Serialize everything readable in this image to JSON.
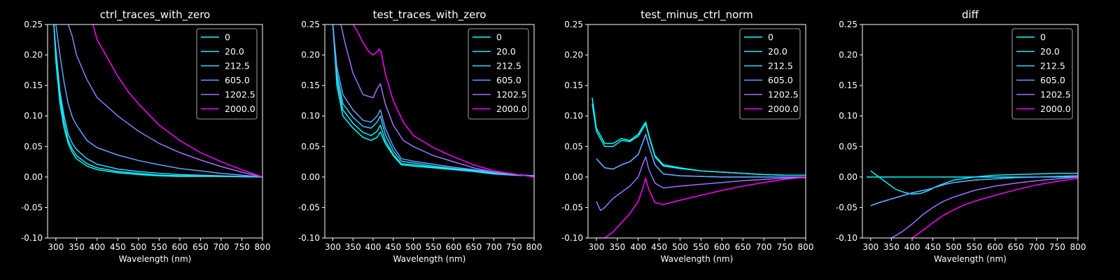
{
  "chart_data": [
    {
      "type": "line",
      "title": "ctrl_traces_with_zero",
      "xlabel": "Wavelength (nm)",
      "ylabel": "",
      "xlim": [
        280,
        800
      ],
      "ylim": [
        -0.1,
        0.25
      ],
      "xticks": [
        300,
        350,
        400,
        450,
        500,
        550,
        600,
        650,
        700,
        750,
        800
      ],
      "yticks": [
        -0.1,
        -0.05,
        0.0,
        0.05,
        0.1,
        0.15,
        0.2,
        0.25
      ],
      "legend_position": "top-right",
      "series": [
        {
          "name": "0",
          "color": "#00ffff",
          "x": [
            295,
            300,
            310,
            320,
            330,
            340,
            350,
            375,
            400,
            450,
            500,
            550,
            600,
            700,
            800
          ],
          "y": [
            0.25,
            0.19,
            0.12,
            0.08,
            0.055,
            0.04,
            0.03,
            0.018,
            0.012,
            0.007,
            0.004,
            0.002,
            0.001,
            0.001,
            0.0
          ]
        },
        {
          "name": "20.0",
          "color": "#10efff",
          "x": [
            295,
            300,
            310,
            320,
            330,
            340,
            350,
            375,
            400,
            450,
            500,
            550,
            600,
            700,
            800
          ],
          "y": [
            0.25,
            0.2,
            0.13,
            0.09,
            0.06,
            0.045,
            0.035,
            0.022,
            0.015,
            0.009,
            0.006,
            0.003,
            0.002,
            0.001,
            0.0
          ]
        },
        {
          "name": "212.5",
          "color": "#33cfff",
          "x": [
            295,
            300,
            310,
            320,
            330,
            340,
            350,
            375,
            400,
            450,
            500,
            550,
            600,
            700,
            800
          ],
          "y": [
            0.25,
            0.21,
            0.14,
            0.1,
            0.07,
            0.055,
            0.045,
            0.03,
            0.021,
            0.013,
            0.009,
            0.006,
            0.004,
            0.002,
            0.0
          ]
        },
        {
          "name": "605.0",
          "color": "#66a0ff",
          "x": [
            300,
            310,
            320,
            330,
            340,
            350,
            375,
            400,
            450,
            500,
            550,
            600,
            650,
            700,
            750,
            800
          ],
          "y": [
            0.25,
            0.2,
            0.155,
            0.12,
            0.098,
            0.085,
            0.06,
            0.048,
            0.036,
            0.027,
            0.02,
            0.014,
            0.01,
            0.006,
            0.003,
            0.0
          ]
        },
        {
          "name": "1202.5",
          "color": "#a070ff",
          "x": [
            330,
            340,
            350,
            375,
            400,
            425,
            450,
            500,
            550,
            600,
            650,
            700,
            750,
            800
          ],
          "y": [
            0.25,
            0.23,
            0.2,
            0.16,
            0.13,
            0.115,
            0.1,
            0.075,
            0.055,
            0.04,
            0.028,
            0.017,
            0.008,
            0.0
          ]
        },
        {
          "name": "2000.0",
          "color": "#ff00ff",
          "x": [
            390,
            400,
            425,
            450,
            475,
            500,
            550,
            600,
            650,
            700,
            750,
            800
          ],
          "y": [
            0.25,
            0.225,
            0.195,
            0.165,
            0.14,
            0.12,
            0.085,
            0.06,
            0.04,
            0.025,
            0.012,
            0.0
          ]
        }
      ]
    },
    {
      "type": "line",
      "title": "test_traces_with_zero",
      "xlabel": "Wavelength (nm)",
      "ylabel": "",
      "xlim": [
        280,
        800
      ],
      "ylim": [
        -0.1,
        0.25
      ],
      "xticks": [
        300,
        350,
        400,
        450,
        500,
        550,
        600,
        650,
        700,
        750,
        800
      ],
      "yticks": [
        -0.1,
        -0.05,
        0.0,
        0.05,
        0.1,
        0.15,
        0.2,
        0.25
      ],
      "legend_position": "top-right",
      "series": [
        {
          "name": "0",
          "color": "#00ffff",
          "x": [
            300,
            310,
            325,
            350,
            375,
            395,
            410,
            418,
            430,
            450,
            470,
            500,
            550,
            600,
            650,
            700,
            750,
            800
          ],
          "y": [
            0.25,
            0.15,
            0.1,
            0.08,
            0.065,
            0.06,
            0.065,
            0.074,
            0.055,
            0.035,
            0.02,
            0.018,
            0.015,
            0.012,
            0.009,
            0.005,
            0.003,
            0.002
          ]
        },
        {
          "name": "20.0",
          "color": "#10efff",
          "x": [
            300,
            310,
            325,
            350,
            375,
            395,
            410,
            418,
            430,
            450,
            470,
            500,
            550,
            600,
            650,
            700,
            750,
            800
          ],
          "y": [
            0.25,
            0.16,
            0.11,
            0.088,
            0.073,
            0.068,
            0.075,
            0.085,
            0.06,
            0.037,
            0.022,
            0.02,
            0.016,
            0.013,
            0.01,
            0.006,
            0.003,
            0.002
          ]
        },
        {
          "name": "212.5",
          "color": "#33cfff",
          "x": [
            300,
            310,
            325,
            350,
            375,
            395,
            410,
            418,
            430,
            450,
            470,
            500,
            550,
            600,
            650,
            700,
            750,
            800
          ],
          "y": [
            0.25,
            0.17,
            0.12,
            0.098,
            0.083,
            0.08,
            0.09,
            0.1,
            0.07,
            0.043,
            0.026,
            0.023,
            0.018,
            0.014,
            0.011,
            0.007,
            0.004,
            0.002
          ]
        },
        {
          "name": "605.0",
          "color": "#66a0ff",
          "x": [
            300,
            310,
            325,
            350,
            375,
            395,
            410,
            418,
            430,
            450,
            470,
            500,
            550,
            600,
            650,
            700,
            750,
            800
          ],
          "y": [
            0.25,
            0.18,
            0.135,
            0.11,
            0.093,
            0.09,
            0.1,
            0.11,
            0.08,
            0.05,
            0.03,
            0.026,
            0.021,
            0.016,
            0.012,
            0.008,
            0.004,
            0.002
          ]
        },
        {
          "name": "1202.5",
          "color": "#a070ff",
          "x": [
            320,
            330,
            350,
            375,
            400,
            410,
            418,
            430,
            450,
            475,
            500,
            550,
            600,
            650,
            700,
            750,
            800
          ],
          "y": [
            0.25,
            0.22,
            0.17,
            0.135,
            0.13,
            0.145,
            0.153,
            0.12,
            0.085,
            0.06,
            0.05,
            0.035,
            0.025,
            0.015,
            0.008,
            0.004,
            0.002
          ]
        },
        {
          "name": "2000.0",
          "color": "#ff00ff",
          "x": [
            350,
            360,
            375,
            390,
            400,
            410,
            415,
            420,
            430,
            450,
            475,
            500,
            550,
            600,
            650,
            700,
            750,
            800
          ],
          "y": [
            0.25,
            0.24,
            0.22,
            0.205,
            0.2,
            0.205,
            0.21,
            0.205,
            0.17,
            0.125,
            0.09,
            0.068,
            0.048,
            0.033,
            0.02,
            0.01,
            0.005,
            0.0
          ]
        }
      ]
    },
    {
      "type": "line",
      "title": "test_minus_ctrl_norm",
      "xlabel": "Wavelength (nm)",
      "ylabel": "",
      "xlim": [
        280,
        800
      ],
      "ylim": [
        -0.1,
        0.25
      ],
      "xticks": [
        300,
        350,
        400,
        450,
        500,
        550,
        600,
        650,
        700,
        750,
        800
      ],
      "yticks": [
        -0.1,
        -0.05,
        0.0,
        0.05,
        0.1,
        0.15,
        0.2,
        0.25
      ],
      "legend_position": "top-right",
      "series": [
        {
          "name": "0",
          "color": "#00ffff",
          "x": [
            290,
            300,
            320,
            340,
            360,
            380,
            400,
            410,
            418,
            425,
            440,
            460,
            500,
            550,
            600,
            650,
            700,
            750,
            800
          ],
          "y": [
            0.13,
            0.08,
            0.055,
            0.055,
            0.063,
            0.06,
            0.07,
            0.082,
            0.09,
            0.07,
            0.035,
            0.02,
            0.015,
            0.01,
            0.008,
            0.006,
            0.004,
            0.003,
            0.003
          ]
        },
        {
          "name": "20.0",
          "color": "#10efff",
          "x": [
            290,
            300,
            320,
            340,
            360,
            380,
            400,
            410,
            418,
            425,
            440,
            460,
            500,
            550,
            600,
            650,
            700,
            750,
            800
          ],
          "y": [
            0.12,
            0.075,
            0.05,
            0.05,
            0.06,
            0.058,
            0.067,
            0.078,
            0.087,
            0.068,
            0.033,
            0.018,
            0.014,
            0.01,
            0.008,
            0.006,
            0.004,
            0.003,
            0.003
          ]
        },
        {
          "name": "212.5",
          "color": "#33cfff",
          "x": [
            300,
            320,
            340,
            360,
            380,
            400,
            410,
            418,
            425,
            440,
            460,
            500,
            550,
            600,
            650,
            700,
            750,
            800
          ],
          "y": [
            0.03,
            0.015,
            0.013,
            0.02,
            0.025,
            0.037,
            0.055,
            0.07,
            0.052,
            0.02,
            0.005,
            0.002,
            0.001,
            0.0,
            0.0,
            0.0,
            0.0,
            0.0
          ]
        },
        {
          "name": "605.0",
          "color": "#66a0ff",
          "x": [
            300,
            320,
            340,
            360,
            380,
            400,
            410,
            418,
            425,
            440,
            460,
            500,
            550,
            600,
            650,
            700,
            750,
            800
          ],
          "y": [
            0.03,
            0.015,
            0.013,
            0.02,
            0.025,
            0.037,
            0.055,
            0.07,
            0.052,
            0.02,
            0.005,
            0.002,
            0.001,
            0.0,
            0.0,
            0.0,
            0.0,
            0.0
          ]
        },
        {
          "name": "1202.5",
          "color": "#a070ff",
          "x": [
            300,
            310,
            320,
            340,
            360,
            380,
            400,
            410,
            418,
            425,
            440,
            460,
            500,
            550,
            600,
            650,
            700,
            750,
            800
          ],
          "y": [
            -0.04,
            -0.055,
            -0.05,
            -0.035,
            -0.025,
            -0.015,
            0.0,
            0.02,
            0.033,
            0.013,
            -0.01,
            -0.018,
            -0.015,
            -0.012,
            -0.009,
            -0.006,
            -0.004,
            -0.002,
            -0.001
          ]
        },
        {
          "name": "2000.0",
          "color": "#ff00ff",
          "x": [
            300,
            320,
            340,
            360,
            380,
            400,
            410,
            418,
            425,
            440,
            460,
            500,
            550,
            600,
            650,
            700,
            750,
            800
          ],
          "y": [
            -0.1,
            -0.1,
            -0.09,
            -0.075,
            -0.06,
            -0.04,
            -0.02,
            -0.002,
            -0.02,
            -0.042,
            -0.045,
            -0.038,
            -0.03,
            -0.022,
            -0.015,
            -0.009,
            -0.004,
            0.0
          ]
        }
      ]
    },
    {
      "type": "line",
      "title": "diff",
      "xlabel": "Wavelength (nm)",
      "ylabel": "",
      "xlim": [
        280,
        800
      ],
      "ylim": [
        -0.1,
        0.25
      ],
      "xticks": [
        300,
        350,
        400,
        450,
        500,
        550,
        600,
        650,
        700,
        750,
        800
      ],
      "yticks": [
        -0.1,
        -0.05,
        0.0,
        0.05,
        0.1,
        0.15,
        0.2,
        0.25
      ],
      "legend_position": "top-right",
      "series": [
        {
          "name": "0",
          "color": "#00ffff",
          "x": [
            290,
            800
          ],
          "y": [
            0.0,
            0.0
          ]
        },
        {
          "name": "20.0",
          "color": "#10efff",
          "x": [
            300,
            320,
            340,
            360,
            380,
            400,
            420,
            440,
            460,
            480,
            500,
            550,
            600,
            650,
            700,
            750,
            800
          ],
          "y": [
            0.01,
            0.0,
            -0.01,
            -0.02,
            -0.025,
            -0.028,
            -0.027,
            -0.022,
            -0.015,
            -0.01,
            -0.005,
            0.0,
            0.003,
            0.004,
            0.005,
            0.006,
            0.006
          ]
        },
        {
          "name": "212.5",
          "color": "#33cfff",
          "x": [
            300,
            320,
            340,
            360,
            380,
            400,
            420,
            440,
            460,
            480,
            500,
            550,
            600,
            650,
            700,
            750,
            800
          ],
          "y": [
            -0.047,
            -0.042,
            -0.038,
            -0.034,
            -0.03,
            -0.026,
            -0.023,
            -0.02,
            -0.016,
            -0.012,
            -0.009,
            -0.005,
            -0.003,
            -0.001,
            0.0,
            0.001,
            0.002
          ]
        },
        {
          "name": "605.0",
          "color": "#66a0ff",
          "x": [
            300,
            320,
            340,
            360,
            380,
            400,
            420,
            440,
            460,
            480,
            500,
            550,
            600,
            650,
            700,
            750,
            800
          ],
          "y": [
            -0.047,
            -0.042,
            -0.038,
            -0.034,
            -0.03,
            -0.026,
            -0.023,
            -0.02,
            -0.016,
            -0.012,
            -0.009,
            -0.005,
            -0.003,
            -0.001,
            0.0,
            0.001,
            0.002
          ]
        },
        {
          "name": "1202.5",
          "color": "#a070ff",
          "x": [
            350,
            375,
            400,
            425,
            450,
            475,
            500,
            550,
            600,
            650,
            700,
            750,
            800
          ],
          "y": [
            -0.1,
            -0.09,
            -0.077,
            -0.062,
            -0.05,
            -0.04,
            -0.033,
            -0.022,
            -0.015,
            -0.01,
            -0.006,
            -0.003,
            0.0
          ]
        },
        {
          "name": "2000.0",
          "color": "#ff00ff",
          "x": [
            400,
            425,
            450,
            475,
            500,
            525,
            550,
            600,
            650,
            700,
            750,
            800
          ],
          "y": [
            -0.1,
            -0.088,
            -0.075,
            -0.063,
            -0.054,
            -0.046,
            -0.04,
            -0.03,
            -0.021,
            -0.013,
            -0.007,
            -0.002
          ]
        }
      ]
    }
  ]
}
